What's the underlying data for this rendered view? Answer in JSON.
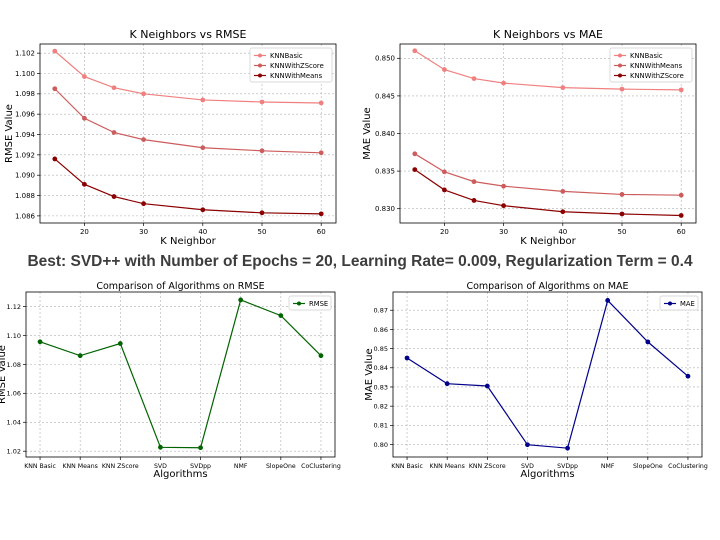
{
  "headline": "Best: SVD++ with  Number of Epochs = 20, Learning Rate= 0.009, Regularization Term = 0.4",
  "chart_data": [
    {
      "id": "k-rmse",
      "type": "line",
      "title": "K Neighbors vs RMSE",
      "xlabel": "K Neighbor",
      "ylabel": "RMSE Value",
      "x": [
        15,
        20,
        25,
        30,
        40,
        50,
        60
      ],
      "xlim": [
        12.5,
        62.5
      ],
      "ylim": [
        1.0853,
        1.1029
      ],
      "xticks": [
        20,
        30,
        40,
        50,
        60
      ],
      "yticks": [
        1.086,
        1.088,
        1.09,
        1.092,
        1.094,
        1.096,
        1.098,
        1.1,
        1.102
      ],
      "ytick_decimals": 3,
      "grid": true,
      "legend": "top-right",
      "series": [
        {
          "name": "KNNBasic",
          "color": "#f08080",
          "values": [
            1.1022,
            1.0997,
            1.0986,
            1.098,
            1.0974,
            1.0972,
            1.0971
          ]
        },
        {
          "name": "KNNWithZScore",
          "color": "#cd5c5c",
          "values": [
            1.0985,
            1.0956,
            1.0942,
            1.0935,
            1.0927,
            1.0924,
            1.0922
          ]
        },
        {
          "name": "KNNWithMeans",
          "color": "#8b0000",
          "values": [
            1.0916,
            1.0891,
            1.0879,
            1.0872,
            1.0866,
            1.0863,
            1.0862
          ]
        }
      ]
    },
    {
      "id": "k-mae",
      "type": "line",
      "title": "K Neighbors vs MAE",
      "xlabel": "K Neighbor",
      "ylabel": "MAE Value",
      "x": [
        15,
        20,
        25,
        30,
        40,
        50,
        60
      ],
      "xlim": [
        12.5,
        62.5
      ],
      "ylim": [
        0.8281,
        0.8519
      ],
      "xticks": [
        20,
        30,
        40,
        50,
        60
      ],
      "yticks": [
        0.83,
        0.835,
        0.84,
        0.845,
        0.85
      ],
      "ytick_decimals": 3,
      "grid": true,
      "legend": "top-right",
      "series": [
        {
          "name": "KNNBasic",
          "color": "#f08080",
          "values": [
            0.851,
            0.8485,
            0.8473,
            0.8467,
            0.8461,
            0.8459,
            0.8458
          ]
        },
        {
          "name": "KNNWithMeans",
          "color": "#cd5c5c",
          "values": [
            0.8373,
            0.8349,
            0.8336,
            0.833,
            0.8323,
            0.8319,
            0.8318
          ]
        },
        {
          "name": "KNNWithZScore",
          "color": "#8b0000",
          "values": [
            0.8352,
            0.8325,
            0.8311,
            0.8304,
            0.8296,
            0.8293,
            0.8291
          ]
        }
      ]
    },
    {
      "id": "algo-rmse",
      "type": "line",
      "title": "Comparison of Algorithms on RMSE",
      "xlabel": "Algorithms",
      "ylabel": "RMSE Value",
      "categories": [
        "KNN Basic",
        "KNN Means",
        "KNN ZScore",
        "SVD",
        "SVDpp",
        "NMF",
        "SlopeOne",
        "CoClustering"
      ],
      "ylim": [
        1.016,
        1.13
      ],
      "yticks": [
        1.02,
        1.04,
        1.06,
        1.08,
        1.1,
        1.12
      ],
      "ytick_decimals": 2,
      "grid": true,
      "legend": "top-right",
      "series": [
        {
          "name": "RMSE",
          "color": "#006400",
          "values": [
            1.0956,
            1.086,
            1.0944,
            1.0227,
            1.0224,
            1.1245,
            1.1137,
            1.086
          ]
        }
      ]
    },
    {
      "id": "algo-mae",
      "type": "line",
      "title": "Comparison of Algorithms on MAE",
      "xlabel": "Algorithms",
      "ylabel": "MAE Value",
      "categories": [
        "KNN Basic",
        "KNN Means",
        "KNN ZScore",
        "SVD",
        "SVDpp",
        "NMF",
        "SlopeOne",
        "CoClustering"
      ],
      "ylim": [
        0.7935,
        0.8795
      ],
      "yticks": [
        0.8,
        0.81,
        0.82,
        0.83,
        0.84,
        0.85,
        0.86,
        0.87
      ],
      "ytick_decimals": 2,
      "grid": true,
      "legend": "top-right",
      "series": [
        {
          "name": "MAE",
          "color": "#00008b",
          "values": [
            0.8451,
            0.8317,
            0.8305,
            0.7999,
            0.7981,
            0.8751,
            0.8535,
            0.8356
          ]
        }
      ]
    }
  ]
}
